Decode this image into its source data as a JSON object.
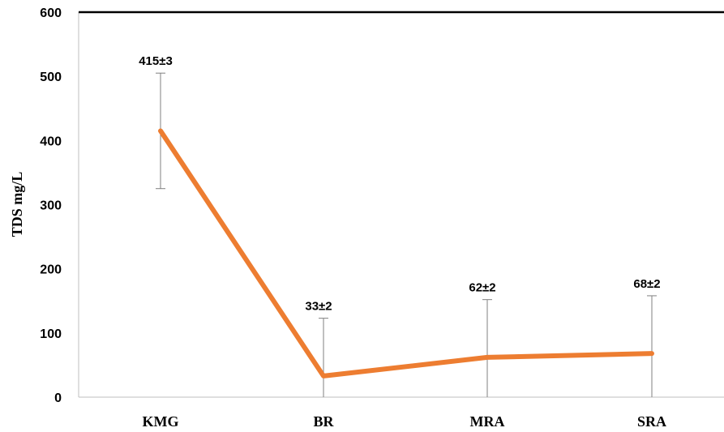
{
  "chart_data": {
    "type": "line",
    "title": "",
    "xlabel": "",
    "ylabel": "TDS mg/L",
    "ylim": [
      0,
      600
    ],
    "y_ticks": [
      "0",
      "100",
      "200",
      "300",
      "400",
      "500",
      "600"
    ],
    "categories": [
      "KMG",
      "BR",
      "MRA",
      "SRA"
    ],
    "series": [
      {
        "values": [
          415,
          33,
          62,
          68
        ],
        "error_high": [
          505,
          123,
          152,
          158
        ],
        "error_low": [
          325,
          null,
          null,
          null
        ],
        "data_labels": [
          "415±3",
          "33±2",
          "62±2",
          "68±2"
        ]
      }
    ],
    "grid": false,
    "line_color": "#ED7D31",
    "error_bar_color": "#808080"
  }
}
